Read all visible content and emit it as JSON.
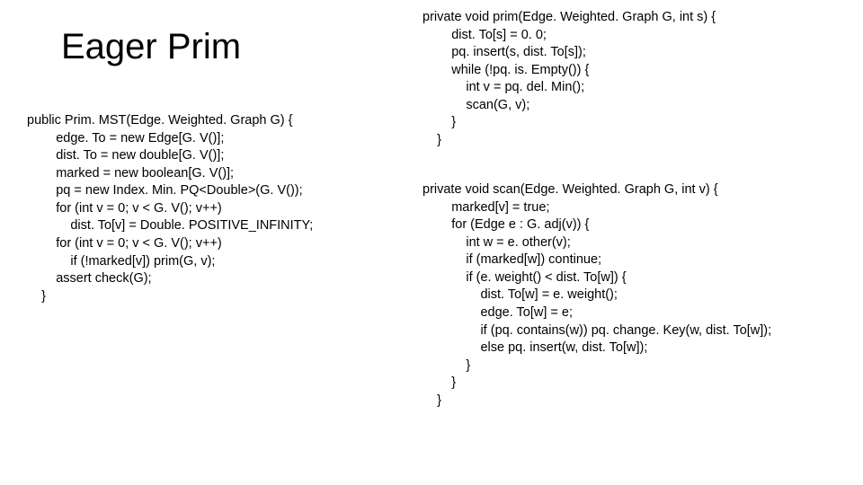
{
  "title": "Eager Prim",
  "codeLeft": "public Prim. MST(Edge. Weighted. Graph G) {\n        edge. To = new Edge[G. V()];\n        dist. To = new double[G. V()];\n        marked = new boolean[G. V()];\n        pq = new Index. Min. PQ<Double>(G. V());\n        for (int v = 0; v < G. V(); v++)\n            dist. To[v] = Double. POSITIVE_INFINITY;\n        for (int v = 0; v < G. V(); v++)\n            if (!marked[v]) prim(G, v);\n        assert check(G);\n    }",
  "codeRight1": "private void prim(Edge. Weighted. Graph G, int s) {\n        dist. To[s] = 0. 0;\n        pq. insert(s, dist. To[s]);\n        while (!pq. is. Empty()) {\n            int v = pq. del. Min();\n            scan(G, v);\n        }\n    }",
  "codeRight2": "private void scan(Edge. Weighted. Graph G, int v) {\n        marked[v] = true;\n        for (Edge e : G. adj(v)) {\n            int w = e. other(v);\n            if (marked[w]) continue;\n            if (e. weight() < dist. To[w]) {\n                dist. To[w] = e. weight();\n                edge. To[w] = e;\n                if (pq. contains(w)) pq. change. Key(w, dist. To[w]);\n                else pq. insert(w, dist. To[w]);\n            }\n        }\n    }",
  "colors": {
    "background": "#ffffff",
    "text": "#000000"
  },
  "typography": {
    "title_fontsize": 40,
    "code_fontsize": 14.5,
    "font_family": "Arial"
  }
}
